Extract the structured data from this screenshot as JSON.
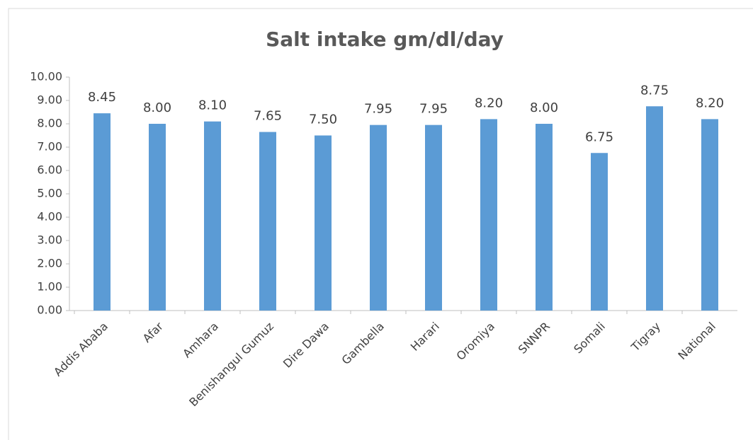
{
  "chart_data": {
    "type": "bar",
    "title": "Salt intake gm/dl/day",
    "categories": [
      "Addis Ababa",
      "Afar",
      "Amhara",
      "Benishangul Gumuz",
      "Dire Dawa",
      "Gambella",
      "Harari",
      "Oromiya",
      "SNNPR",
      "Somali",
      "Tigray",
      "National"
    ],
    "values": [
      8.45,
      8.0,
      8.1,
      7.65,
      7.5,
      7.95,
      7.95,
      8.2,
      8.0,
      6.75,
      8.75,
      8.2
    ],
    "value_labels": [
      "8.45",
      "8.00",
      "8.10",
      "7.65",
      "7.50",
      "7.95",
      "7.95",
      "8.20",
      "8.00",
      "6.75",
      "8.75",
      "8.20"
    ],
    "color": "#5b9bd5",
    "ylim": [
      0,
      10
    ],
    "yticks": [
      {
        "value": 0,
        "label": "0.00"
      },
      {
        "value": 1,
        "label": "1.00"
      },
      {
        "value": 2,
        "label": "2.00"
      },
      {
        "value": 3,
        "label": "3.00"
      },
      {
        "value": 4,
        "label": "4.00"
      },
      {
        "value": 5,
        "label": "5.00"
      },
      {
        "value": 6,
        "label": "6.00"
      },
      {
        "value": 7,
        "label": "7.00"
      },
      {
        "value": 8,
        "label": "8.00"
      },
      {
        "value": 9,
        "label": "9.00"
      },
      {
        "value": 10,
        "label": "10.00"
      }
    ],
    "grid": false
  }
}
